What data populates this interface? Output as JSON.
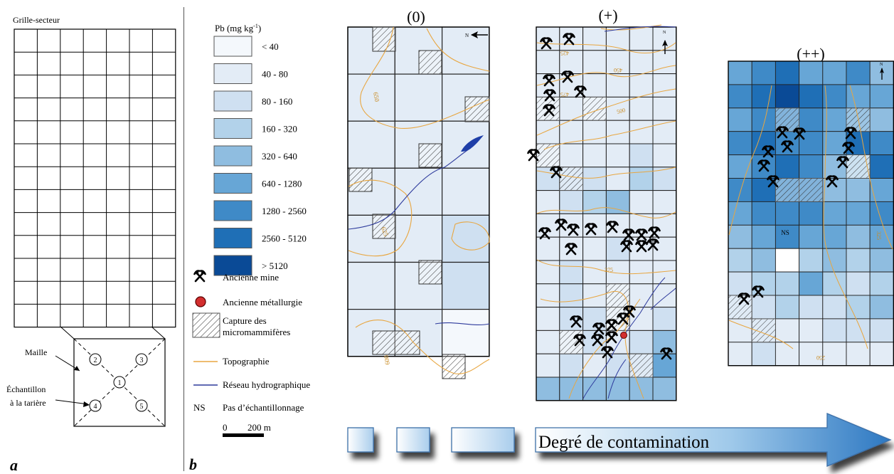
{
  "panel_a": {
    "title": "Grille-secteur",
    "maille_label": "Maille",
    "sample_label_line1": "Échantillon",
    "sample_label_line2": "à la tarière",
    "point_numbers": [
      "1",
      "2",
      "3",
      "4",
      "5"
    ],
    "panel_letter": "a"
  },
  "panel_b": {
    "panel_letter": "b",
    "legend": {
      "title": "Pb (mg kg",
      "title_sup": "-1",
      "title_end": ")",
      "classes": [
        {
          "label": "< 40",
          "color": "#f4f8fc"
        },
        {
          "label": "40 - 80",
          "color": "#e3ecf6"
        },
        {
          "label": "80 - 160",
          "color": "#cfe0f1"
        },
        {
          "label": "160 - 320",
          "color": "#b2d2ea"
        },
        {
          "label": "320 - 640",
          "color": "#8fbde0"
        },
        {
          "label": "640 - 1280",
          "color": "#67a6d6"
        },
        {
          "label": "1280 - 2560",
          "color": "#3f8ac7"
        },
        {
          "label": "2560 - 5120",
          "color": "#1f6fb6"
        },
        {
          "label": "> 5120",
          "color": "#0a4a96"
        }
      ],
      "mine_label": "Ancienne mine",
      "metallurgy_label": "Ancienne métallurgie",
      "capture_label_line1": "Capture des",
      "capture_label_line2": "micromammifères",
      "topo_label": "Topographie",
      "hydro_label": "Réseau hydrographique",
      "ns_code": "NS",
      "ns_label": "Pas d’échantillonnage",
      "scale_zero": "0",
      "scale_dist": "200 m"
    },
    "maps": [
      {
        "title": "(0)",
        "north": "N",
        "contour_labels": [
          "650",
          "600",
          "625"
        ]
      },
      {
        "title": "(+)",
        "north": "N",
        "contour_labels": [
          "425",
          "450",
          "475",
          "500",
          "375"
        ]
      },
      {
        "title": "(++)",
        "north": "N",
        "ns_cell": "NS",
        "contour_labels": [
          "325",
          "250"
        ]
      }
    ],
    "arrow_label": "Degré de contamination"
  },
  "colors": {
    "topo": "#e8a640",
    "hydro": "#2d3a9c",
    "metallurgy": "#d32f2f"
  }
}
